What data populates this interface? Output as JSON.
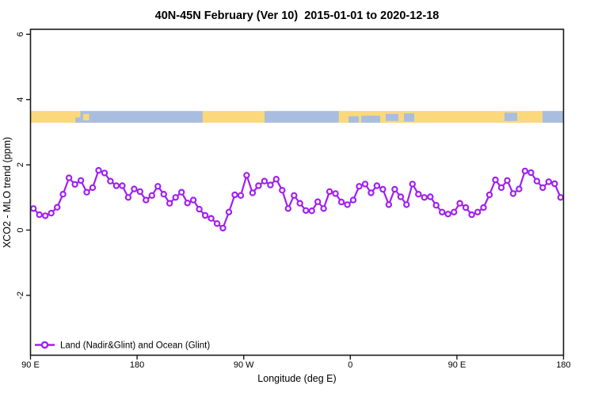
{
  "title": "40N-45N February (Ver 10)  2015-01-01 to 2020-12-18",
  "chart_data": {
    "type": "line",
    "title": "40N-45N February (Ver 10)  2015-01-01 to 2020-12-18",
    "xlabel": "Longitude (deg E)",
    "ylabel": "XCO2 - MLO trend (ppm)",
    "x_tick_labels": [
      "90 E",
      "180",
      "90 W",
      "0",
      "90 E",
      "180"
    ],
    "x_ticks_deg": [
      0,
      90,
      180,
      270,
      360,
      450
    ],
    "y_ticks": [
      6,
      4,
      2,
      0,
      -2
    ],
    "ylim": [
      -3.8,
      6.15
    ],
    "x_first_deg": 2.5,
    "x_step_deg": 5,
    "legend": {
      "label": "Land (Nadir&Glint) and Ocean (Glint)"
    },
    "series": [
      {
        "name": "Land (Nadir&Glint) and Ocean (Glint)",
        "color": "#A020F0",
        "marker": "open-circle",
        "values": [
          0.66,
          0.47,
          0.44,
          0.52,
          0.7,
          1.1,
          1.6,
          1.4,
          1.52,
          1.16,
          1.3,
          1.83,
          1.75,
          1.5,
          1.36,
          1.36,
          1.0,
          1.26,
          1.18,
          0.92,
          1.06,
          1.34,
          1.1,
          0.82,
          1.0,
          1.16,
          0.83,
          0.92,
          0.64,
          0.45,
          0.36,
          0.2,
          0.06,
          0.55,
          1.08,
          1.06,
          1.68,
          1.14,
          1.36,
          1.5,
          1.38,
          1.56,
          1.22,
          0.66,
          1.06,
          0.82,
          0.6,
          0.59,
          0.87,
          0.66,
          1.18,
          1.12,
          0.86,
          0.78,
          0.92,
          1.34,
          1.41,
          1.14,
          1.36,
          1.25,
          0.78,
          1.25,
          1.02,
          0.78,
          1.41,
          1.1,
          1.0,
          1.02,
          0.76,
          0.55,
          0.49,
          0.55,
          0.82,
          0.69,
          0.47,
          0.55,
          0.69,
          1.08,
          1.54,
          1.3,
          1.52,
          1.12,
          1.26,
          1.81,
          1.76,
          1.5,
          1.3,
          1.48,
          1.42,
          1.0
        ]
      }
    ],
    "map_band": {
      "y_range": [
        3.29,
        3.65
      ],
      "land_color": "#FBD87C",
      "ocean_color": "#A9BEDE",
      "segments": [
        {
          "type": "land",
          "from": 0,
          "to": 42
        },
        {
          "type": "ocean",
          "from": 42,
          "to": 145.4
        },
        {
          "type": "land",
          "from": 145.4,
          "to": 197.6
        },
        {
          "type": "ocean",
          "from": 197.6,
          "to": 260.4
        },
        {
          "type": "land",
          "from": 260.4,
          "to": 432.3
        },
        {
          "type": "ocean",
          "from": 432.3,
          "to": 450
        }
      ],
      "patches": [
        {
          "type": "ocean",
          "from": 38,
          "to": 42,
          "top": 0.55,
          "bottom": 1
        },
        {
          "type": "land",
          "from": 44.5,
          "to": 49.5,
          "top": 0.25,
          "bottom": 0.8
        },
        {
          "type": "ocean",
          "from": 268.5,
          "to": 277.2,
          "top": 0.45,
          "bottom": 1
        },
        {
          "type": "ocean",
          "from": 279.2,
          "to": 295.2,
          "top": 0.4,
          "bottom": 1
        },
        {
          "type": "ocean",
          "from": 299.9,
          "to": 310.6,
          "top": 0.25,
          "bottom": 0.85
        },
        {
          "type": "ocean",
          "from": 315.3,
          "to": 324,
          "top": 0.2,
          "bottom": 0.9
        },
        {
          "type": "ocean",
          "from": 400.2,
          "to": 410.9,
          "top": 0.15,
          "bottom": 0.85
        }
      ]
    }
  }
}
